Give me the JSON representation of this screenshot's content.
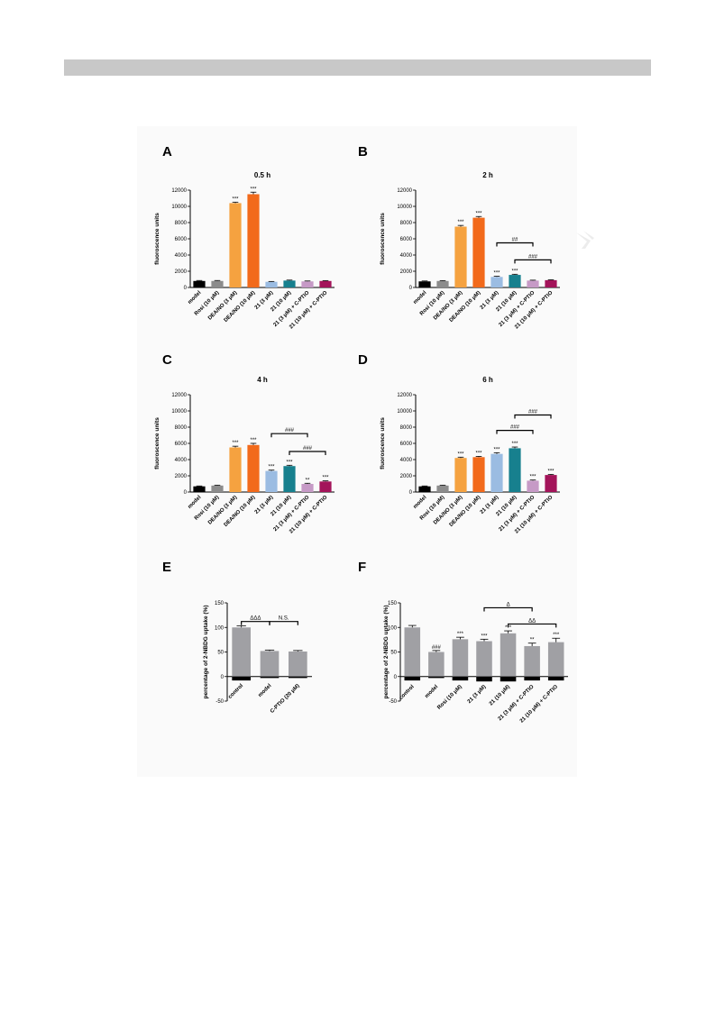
{
  "chart_data": [
    {
      "panel": "A",
      "type": "bar",
      "title": "0.5 h",
      "ylabel": "fluoroscence units",
      "ylim": [
        0,
        12000
      ],
      "yticks": [
        0,
        2000,
        4000,
        6000,
        8000,
        10000,
        12000
      ],
      "categories": [
        "model",
        "Rosi (10 μM)",
        "DEA/NO (3 μM)",
        "DEA/NO (10 μM)",
        "21 (3 μM)",
        "21 (10 μM)",
        "21 (3 μM) + C-PTIO",
        "21 (10 μM) + C-PTIO"
      ],
      "values": [
        800,
        800,
        10400,
        11500,
        700,
        850,
        750,
        800
      ],
      "errors": [
        60,
        60,
        120,
        250,
        40,
        60,
        50,
        50
      ],
      "colors": [
        "#000000",
        "#8c8c8c",
        "#f5a240",
        "#f26a1b",
        "#9bbce2",
        "#17808e",
        "#c69ac6",
        "#a3145a"
      ],
      "significance": [
        "",
        "",
        "***",
        "***",
        "",
        "",
        "",
        ""
      ],
      "brackets": []
    },
    {
      "panel": "B",
      "type": "bar",
      "title": "2 h",
      "ylabel": "fluoroscence units",
      "ylim": [
        0,
        12000
      ],
      "yticks": [
        0,
        2000,
        4000,
        6000,
        8000,
        10000,
        12000
      ],
      "categories": [
        "model",
        "Rosi (10 μM)",
        "DEA/NO (3 μM)",
        "DEA/NO (10 μM)",
        "21 (3 μM)",
        "21 (10 μM)",
        "21 (3 μM) + C-PTIO",
        "21 (10 μM) + C-PTIO"
      ],
      "values": [
        750,
        800,
        7500,
        8600,
        1300,
        1550,
        850,
        900
      ],
      "errors": [
        50,
        50,
        150,
        150,
        80,
        80,
        50,
        50
      ],
      "colors": [
        "#000000",
        "#8c8c8c",
        "#f5a240",
        "#f26a1b",
        "#9bbce2",
        "#17808e",
        "#c69ac6",
        "#a3145a"
      ],
      "significance": [
        "",
        "",
        "***",
        "***",
        "***",
        "***",
        "",
        ""
      ],
      "brackets": [
        {
          "from": 4,
          "to": 6,
          "y": 5500,
          "label": "##",
          "color": "#000000"
        },
        {
          "from": 5,
          "to": 7,
          "y": 3400,
          "label": "###",
          "color": "#000000"
        }
      ]
    },
    {
      "panel": "C",
      "type": "bar",
      "title": "4 h",
      "ylabel": "fluoroscence units",
      "ylim": [
        0,
        12000
      ],
      "yticks": [
        0,
        2000,
        4000,
        6000,
        8000,
        10000,
        12000
      ],
      "categories": [
        "model",
        "Rosi (10 μM)",
        "DEA/NO (3 μM)",
        "DEA/NO (10 μM)",
        "21 (3 μM)",
        "21 (10 μM)",
        "21 (3 μM) + C-PTIO",
        "21 (10 μM) + C-PTIO"
      ],
      "values": [
        700,
        800,
        5500,
        5800,
        2600,
        3200,
        1000,
        1300
      ],
      "errors": [
        50,
        50,
        150,
        200,
        100,
        100,
        80,
        80
      ],
      "colors": [
        "#000000",
        "#8c8c8c",
        "#f5a240",
        "#f26a1b",
        "#9bbce2",
        "#17808e",
        "#c69ac6",
        "#a3145a"
      ],
      "significance": [
        "",
        "",
        "***",
        "***",
        "***",
        "***",
        "**",
        "***"
      ],
      "brackets": [
        {
          "from": 4,
          "to": 6,
          "y": 7200,
          "label": "###",
          "color": "#000000"
        },
        {
          "from": 5,
          "to": 7,
          "y": 5000,
          "label": "###",
          "color": "#000000"
        }
      ]
    },
    {
      "panel": "D",
      "type": "bar",
      "title": "6 h",
      "ylabel": "fluoroscence units",
      "ylim": [
        0,
        12000
      ],
      "yticks": [
        0,
        2000,
        4000,
        6000,
        8000,
        10000,
        12000
      ],
      "categories": [
        "model",
        "Rosi (10 μM)",
        "DEA/NO (3 μM)",
        "DEA/NO (10 μM)",
        "21 (3 μM)",
        "21 (10 μM)",
        "21 (3 μM) + C-PTIO",
        "21 (10 μM) + C-PTIO"
      ],
      "values": [
        700,
        800,
        4200,
        4300,
        4700,
        5400,
        1400,
        2100
      ],
      "errors": [
        50,
        50,
        100,
        100,
        150,
        150,
        80,
        80
      ],
      "colors": [
        "#000000",
        "#8c8c8c",
        "#f5a240",
        "#f26a1b",
        "#9bbce2",
        "#17808e",
        "#c69ac6",
        "#a3145a"
      ],
      "significance": [
        "",
        "",
        "***",
        "***",
        "***",
        "***",
        "***",
        "***"
      ],
      "brackets": [
        {
          "from": 4,
          "to": 6,
          "y": 7600,
          "label": "###",
          "color": "#000000"
        },
        {
          "from": 5,
          "to": 7,
          "y": 9500,
          "label": "###",
          "color": "#000000"
        }
      ]
    },
    {
      "panel": "E",
      "type": "bar",
      "ylabel": "percentage of 2-NBDG uptake (%)",
      "ylim": [
        -50,
        150
      ],
      "yticks": [
        -50,
        0,
        50,
        100,
        150
      ],
      "categories": [
        "control",
        "model",
        "C-PTIO (20 μM)"
      ],
      "values": [
        100,
        52,
        51
      ],
      "errors": [
        3,
        2,
        2
      ],
      "negative_values": [
        -8,
        -3,
        -3
      ],
      "colors": [
        "#a0a0a4",
        "#a0a0a4",
        "#a0a0a4"
      ],
      "significance": [
        "",
        "",
        ""
      ],
      "brackets": [
        {
          "from": 0,
          "to": 1,
          "y": 112,
          "label": "ΔΔΔ",
          "color": "#9a9a9a"
        },
        {
          "from": 1,
          "to": 2,
          "y": 112,
          "label": "N.S.",
          "color": "#555555"
        }
      ]
    },
    {
      "panel": "F",
      "type": "bar",
      "ylabel": "percentage of 2-NBDG uptake (%)",
      "ylim": [
        -50,
        150
      ],
      "yticks": [
        -50,
        0,
        50,
        100,
        150
      ],
      "categories": [
        "control",
        "model",
        "Rosi (10 μM)",
        "21 (3 μM)",
        "21 (10 μM)",
        "21 (3 μM) + C-PTIO",
        "21 (10 μM) + C-PTIO"
      ],
      "values": [
        100,
        50,
        76,
        72,
        88,
        62,
        70
      ],
      "errors": [
        4,
        3,
        4,
        4,
        5,
        6,
        8
      ],
      "negative_values": [
        -8,
        -3,
        -8,
        -10,
        -10,
        -8,
        -8
      ],
      "colors": [
        "#a0a0a4",
        "#a0a0a4",
        "#a0a0a4",
        "#a0a0a4",
        "#a0a0a4",
        "#a0a0a4",
        "#a0a0a4"
      ],
      "significance": [
        "",
        "###",
        "***",
        "***",
        "***",
        "**",
        "***"
      ],
      "brackets": [
        {
          "from": 3,
          "to": 5,
          "y": 140,
          "label": "Δ",
          "color": "#9a9a9a"
        },
        {
          "from": 4,
          "to": 6,
          "y": 107,
          "label": "ΔΔ",
          "color": "#9a9a9a"
        }
      ]
    }
  ]
}
